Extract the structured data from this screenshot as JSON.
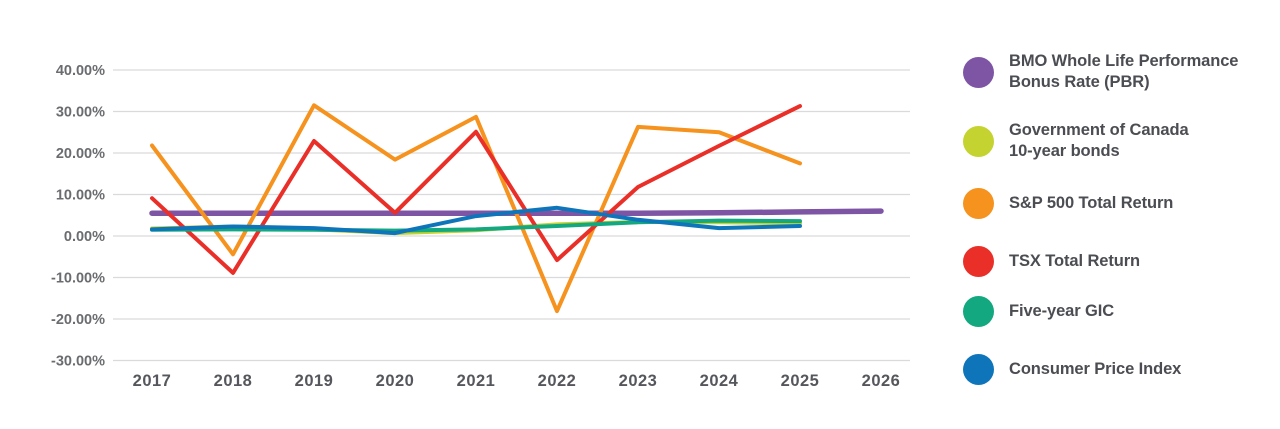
{
  "chart_data": {
    "type": "line",
    "title": "",
    "xlabel": "",
    "ylabel": "",
    "x_labels": [
      "2017",
      "2018",
      "2019",
      "2020",
      "2021",
      "2022",
      "2023",
      "2024",
      "2025",
      "2026"
    ],
    "y_ticks": [
      40,
      30,
      20,
      10,
      0,
      -10,
      -20,
      -30
    ],
    "y_tick_labels": [
      "40.00%",
      "30.00%",
      "20.00%",
      "10.00%",
      "0.00%",
      "-10.00%",
      "-20.00%",
      "-30.00%"
    ],
    "ylim": [
      -30,
      40
    ],
    "grid": "horizontal-only",
    "legend_position": "right",
    "series": [
      {
        "key": "pbr",
        "name": "BMO Whole Life Performance Bonus Rate (PBR)",
        "label_lines": [
          "BMO Whole Life Performance",
          "Bonus Rate (PBR)"
        ],
        "color": "#7d55a4",
        "values": [
          5.5,
          5.5,
          5.5,
          5.5,
          5.5,
          5.5,
          5.5,
          5.6,
          5.8,
          6.0
        ]
      },
      {
        "key": "goc-bonds",
        "name": "Government of Canada 10-year bonds",
        "label_lines": [
          "Government of Canada",
          "10-year bonds"
        ],
        "color": "#c4d32f",
        "values": [
          1.8,
          2.3,
          1.6,
          0.7,
          1.4,
          2.8,
          3.4,
          3.3,
          3.1
        ]
      },
      {
        "key": "sp500",
        "name": "S&P 500 Total Return",
        "label_lines": [
          "S&P 500 Total Return"
        ],
        "color": "#f6921e",
        "values": [
          21.8,
          -4.4,
          31.5,
          18.4,
          28.7,
          -18.1,
          26.3,
          25.0,
          17.5
        ]
      },
      {
        "key": "tsx",
        "name": "TSX Total Return",
        "label_lines": [
          "TSX Total Return"
        ],
        "color": "#e92f28",
        "values": [
          9.1,
          -8.9,
          22.9,
          5.6,
          25.1,
          -5.8,
          11.8,
          21.7,
          31.3
        ]
      },
      {
        "key": "gic",
        "name": "Five-year GIC",
        "label_lines": [
          "Five-year GIC"
        ],
        "color": "#13a87f",
        "values": [
          1.5,
          1.6,
          1.5,
          1.3,
          1.6,
          2.4,
          3.3,
          3.7,
          3.6
        ]
      },
      {
        "key": "cpi",
        "name": "Consumer Price Index",
        "label_lines": [
          "Consumer Price Index"
        ],
        "color": "#0e75ba",
        "values": [
          1.6,
          2.3,
          1.9,
          0.7,
          4.8,
          6.8,
          3.9,
          1.9,
          2.4
        ]
      }
    ]
  },
  "colors": {
    "background": "#ffffff",
    "gridline": "#d9dadb",
    "y_tick_text": "#6a6c70",
    "x_tick_text": "#55575c",
    "legend_text": "#4b4d52"
  }
}
